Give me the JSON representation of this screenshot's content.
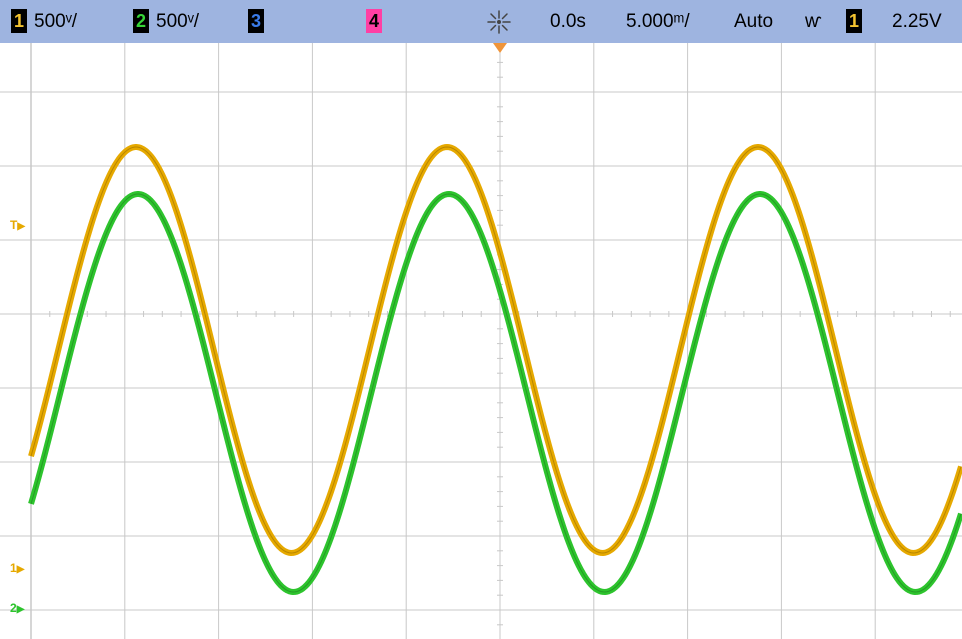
{
  "status_bar": {
    "ch1": {
      "badge": "1",
      "scale": "500ᵛ/",
      "color": "#e6a900"
    },
    "ch2": {
      "badge": "2",
      "scale": "500ᵛ/",
      "color": "#2dc42d"
    },
    "ch3": {
      "badge": "3"
    },
    "ch4": {
      "badge": "4"
    },
    "run_icon": "run-star-icon",
    "delay": "0.0s",
    "timebase": "5.000ᵐ/",
    "trigger_mode": "Auto",
    "trigger_slope_symbol": "ⱳ",
    "trigger_source": "1",
    "trigger_level": "2.25V"
  },
  "markers": {
    "trigger_level": "T",
    "ch1_ground": "1",
    "ch2_ground": "2"
  },
  "display": {
    "grid_color": "#c8c8c8",
    "divisions_x": 10,
    "divisions_y": 8,
    "trace_colors": {
      "ch1": "#e6a900",
      "ch2": "#2dc42d"
    }
  }
}
